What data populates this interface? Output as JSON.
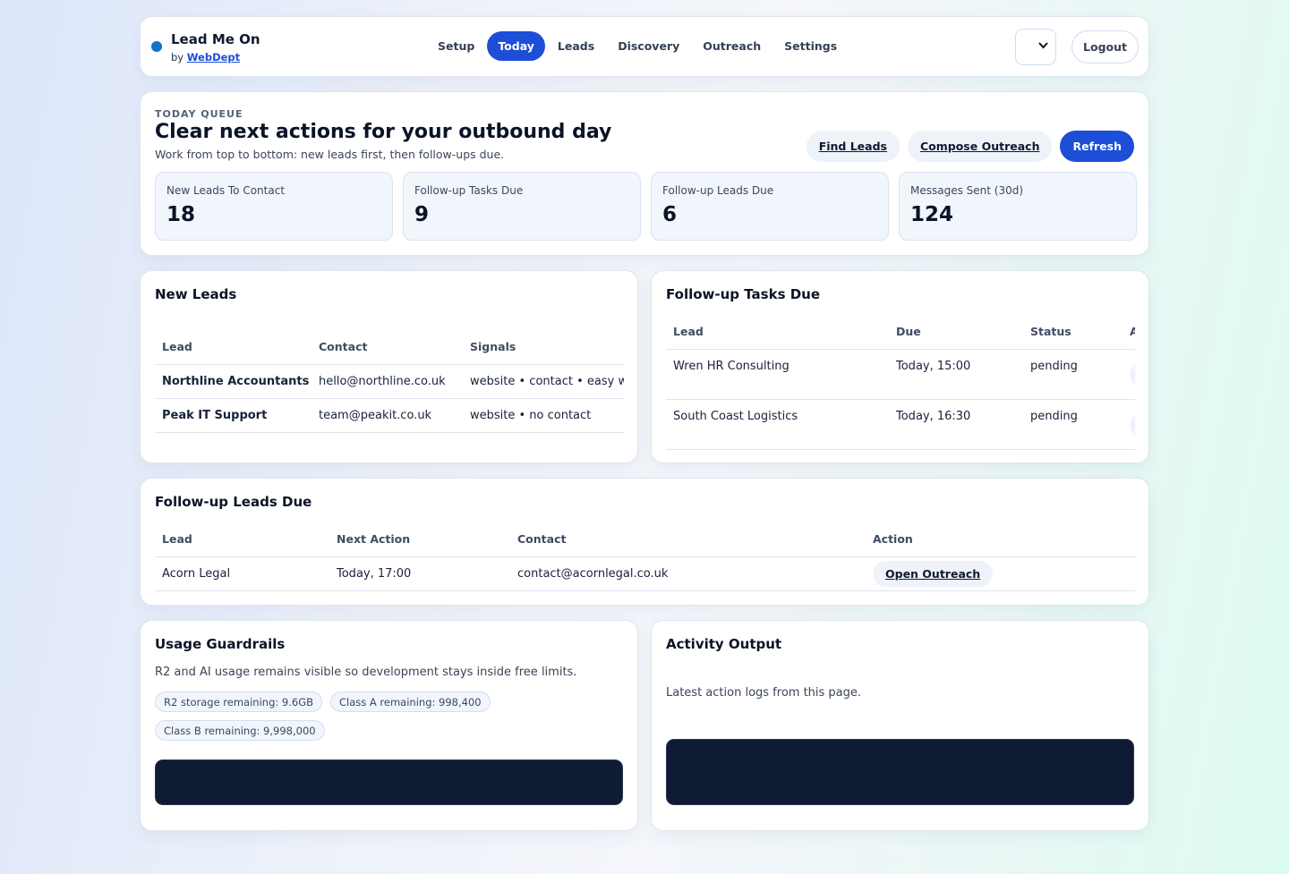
{
  "header": {
    "brand_name": "Lead Me On",
    "brand_by": "by",
    "brand_link": "WebDept",
    "nav": [
      "Setup",
      "Today",
      "Leads",
      "Discovery",
      "Outreach",
      "Settings"
    ],
    "active_nav": "Today",
    "logout_label": "Logout"
  },
  "queue": {
    "eyebrow": "TODAY QUEUE",
    "title": "Clear next actions for your outbound day",
    "subtitle": "Work from top to bottom: new leads first, then follow-ups due.",
    "buttons": {
      "find_leads": "Find Leads",
      "compose_outreach": "Compose Outreach",
      "refresh": "Refresh"
    },
    "stats": [
      {
        "label": "New Leads To Contact",
        "value": "18"
      },
      {
        "label": "Follow-up Tasks Due",
        "value": "9"
      },
      {
        "label": "Follow-up Leads Due",
        "value": "6"
      },
      {
        "label": "Messages Sent (30d)",
        "value": "124"
      }
    ]
  },
  "new_leads": {
    "title": "New Leads",
    "columns": [
      "Lead",
      "Contact",
      "Signals"
    ],
    "rows": [
      {
        "lead": "Northline Accountants",
        "contact": "hello@northline.co.uk",
        "signals": "website • contact • easy wi"
      },
      {
        "lead": "Peak IT Support",
        "contact": "team@peakit.co.uk",
        "signals": "website • no contact"
      }
    ]
  },
  "followup_tasks": {
    "title": "Follow-up Tasks Due",
    "columns": [
      "Lead",
      "Due",
      "Status",
      "A"
    ],
    "rows": [
      {
        "lead": "Wren HR Consulting",
        "due": "Today, 15:00",
        "status": "pending"
      },
      {
        "lead": "South Coast Logistics",
        "due": "Today, 16:30",
        "status": "pending"
      }
    ]
  },
  "followup_leads": {
    "title": "Follow-up Leads Due",
    "columns": [
      "Lead",
      "Next Action",
      "Contact",
      "Action"
    ],
    "rows": [
      {
        "lead": "Acorn Legal",
        "next_action": "Today, 17:00",
        "contact": "contact@acornlegal.co.uk",
        "action": "Open Outreach"
      }
    ]
  },
  "guardrails": {
    "title": "Usage Guardrails",
    "description": "R2 and AI usage remains visible so development stays inside free limits.",
    "chips": [
      "R2 storage remaining: 9.6GB",
      "Class A remaining: 998,400",
      "Class B remaining: 9,998,000"
    ]
  },
  "activity": {
    "title": "Activity Output",
    "description": "Latest action logs from this page."
  }
}
